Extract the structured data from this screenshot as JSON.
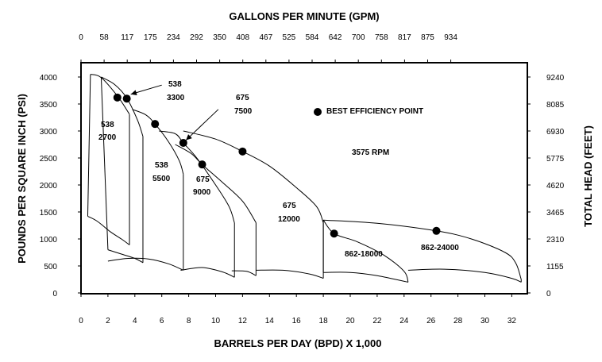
{
  "chart_data": {
    "type": "line",
    "title": "",
    "top_axis": {
      "label": "GALLONS PER MINUTE (GPM)",
      "ticks": [
        "0",
        "58",
        "117",
        "175",
        "234",
        "292",
        "350",
        "408",
        "467",
        "525",
        "584",
        "642",
        "700",
        "758",
        "817",
        "875",
        "934"
      ]
    },
    "bottom_axis": {
      "label": "BARRELS PER DAY (BPD) X 1,000",
      "ticks": [
        "0",
        "2",
        "4",
        "6",
        "8",
        "10",
        "12",
        "14",
        "16",
        "18",
        "20",
        "22",
        "24",
        "26",
        "28",
        "30",
        "32"
      ],
      "range": [
        0,
        33.5
      ]
    },
    "left_axis": {
      "label": "POUNDS PER SQUARE INCH (PSI)",
      "ticks": [
        "0",
        "500",
        "1000",
        "1500",
        "2000",
        "2500",
        "3000",
        "3500",
        "4000"
      ],
      "range": [
        0,
        4200
      ]
    },
    "right_axis": {
      "label": "TOTAL HEAD (FEET)",
      "ticks": [
        "0",
        "1155",
        "2310",
        "3465",
        "4620",
        "5775",
        "6930",
        "8085",
        "9240"
      ]
    },
    "legend": {
      "marker_label": "BEST EFFICIENCY POINT"
    },
    "annotation": "3575 RPM",
    "series": [
      {
        "name": "538-2700",
        "label_lines": [
          "538",
          "2700"
        ],
        "head": [
          [
            0.7,
            4050
          ],
          [
            1.5,
            3990
          ],
          [
            2.7,
            3650
          ],
          [
            3.5,
            3350
          ],
          [
            3.6,
            3300
          ]
        ],
        "min": [
          [
            0.5,
            1420
          ],
          [
            1.2,
            1330
          ],
          [
            2.2,
            1130
          ],
          [
            3.0,
            1000
          ],
          [
            3.6,
            890
          ]
        ],
        "bep": [
          2.7,
          3620
        ]
      },
      {
        "name": "538-3300",
        "label_lines": [
          "538",
          "3300"
        ],
        "head": [
          [
            1.5,
            4000
          ],
          [
            2.5,
            3860
          ],
          [
            3.4,
            3610
          ],
          [
            4.2,
            3200
          ],
          [
            4.6,
            2900
          ]
        ],
        "min": [
          [
            2.0,
            800
          ],
          [
            3.0,
            720
          ],
          [
            4.0,
            640
          ],
          [
            4.6,
            560
          ]
        ],
        "bep": [
          3.4,
          3600
        ],
        "callout": [
          [
            6.0,
            3850
          ],
          [
            3.7,
            3680
          ]
        ]
      },
      {
        "name": "538-5500",
        "label_lines": [
          "538",
          "5500"
        ],
        "head": [
          [
            3.8,
            3400
          ],
          [
            4.8,
            3300
          ],
          [
            5.5,
            3130
          ],
          [
            6.5,
            2800
          ],
          [
            7.3,
            2450
          ],
          [
            7.6,
            2200
          ]
        ],
        "min": [
          [
            2.0,
            590
          ],
          [
            3.5,
            640
          ],
          [
            5.0,
            630
          ],
          [
            6.5,
            540
          ],
          [
            7.6,
            420
          ]
        ],
        "bep": [
          5.5,
          3130
        ]
      },
      {
        "name": "675-7500",
        "label_lines": [
          "675",
          "7500"
        ],
        "head": [
          [
            5.8,
            3000
          ],
          [
            7.0,
            2950
          ],
          [
            7.6,
            2780
          ],
          [
            8.6,
            2500
          ],
          [
            10.0,
            2000
          ],
          [
            11.0,
            1600
          ],
          [
            11.4,
            1300
          ]
        ],
        "min": [
          [
            7.4,
            420
          ],
          [
            9.0,
            470
          ],
          [
            10.5,
            390
          ],
          [
            11.4,
            290
          ]
        ],
        "bep": [
          7.6,
          2780
        ],
        "callout": [
          [
            10.2,
            3400
          ],
          [
            7.8,
            2830
          ]
        ]
      },
      {
        "name": "675-9000",
        "label_lines": [
          "675",
          "9000"
        ],
        "head": [
          [
            7.0,
            2750
          ],
          [
            8.2,
            2580
          ],
          [
            9.0,
            2380
          ],
          [
            10.5,
            2050
          ],
          [
            12.0,
            1700
          ],
          [
            13.0,
            1300
          ]
        ],
        "min": [
          [
            11.2,
            410
          ],
          [
            12.3,
            400
          ],
          [
            13.0,
            320
          ]
        ],
        "bep": [
          9.0,
          2380
        ]
      },
      {
        "name": "675-12000",
        "label_lines": [
          "675",
          "12000"
        ],
        "head": [
          [
            7.6,
            3000
          ],
          [
            10.0,
            2850
          ],
          [
            12.0,
            2620
          ],
          [
            14.0,
            2350
          ],
          [
            16.0,
            1950
          ],
          [
            17.5,
            1600
          ],
          [
            18.0,
            1300
          ]
        ],
        "min": [
          [
            13.0,
            420
          ],
          [
            15.0,
            420
          ],
          [
            17.0,
            350
          ],
          [
            18.0,
            270
          ]
        ],
        "bep": [
          12.0,
          2620
        ]
      },
      {
        "name": "862-18000",
        "label_lines": [
          "862-18000"
        ],
        "head": [
          [
            18.0,
            1350
          ],
          [
            18.8,
            1100
          ],
          [
            20.5,
            950
          ],
          [
            22.5,
            700
          ],
          [
            24.0,
            400
          ],
          [
            24.3,
            200
          ]
        ],
        "min": [
          [
            18.0,
            380
          ],
          [
            20.0,
            380
          ],
          [
            22.0,
            320
          ],
          [
            24.3,
            200
          ]
        ],
        "bep": [
          18.8,
          1100
        ]
      },
      {
        "name": "862-24000",
        "label_lines": [
          "862-24000"
        ],
        "head": [
          [
            18.0,
            1350
          ],
          [
            22.0,
            1290
          ],
          [
            26.4,
            1150
          ],
          [
            29.0,
            1000
          ],
          [
            31.5,
            750
          ],
          [
            32.3,
            550
          ],
          [
            32.7,
            250
          ]
        ],
        "min": [
          [
            24.3,
            420
          ],
          [
            27.0,
            440
          ],
          [
            30.0,
            380
          ],
          [
            32.0,
            270
          ],
          [
            32.7,
            200
          ]
        ],
        "bep": [
          26.4,
          1150
        ]
      }
    ]
  }
}
